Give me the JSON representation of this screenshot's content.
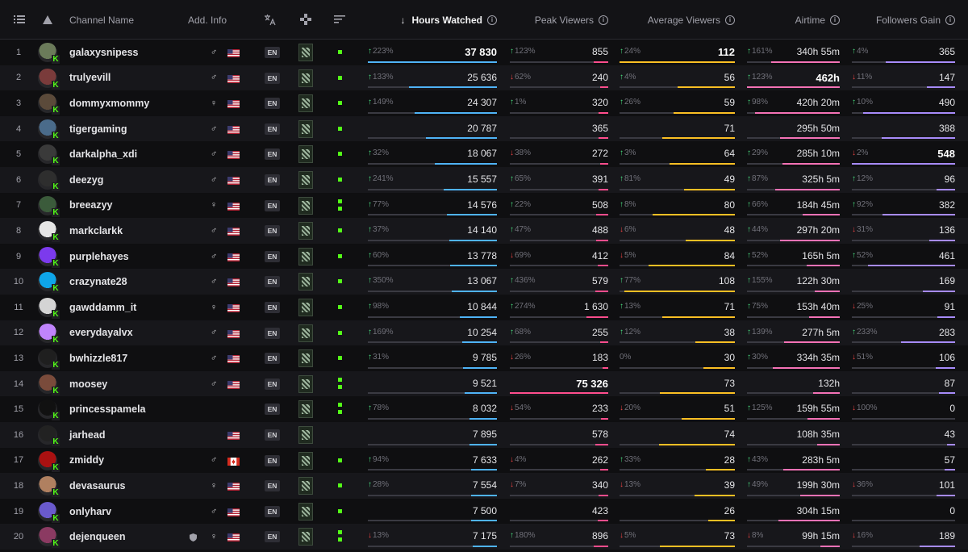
{
  "header": {
    "list_icon": "list-icon",
    "kick_icon": "kick-logo-icon",
    "channel_name": "Channel Name",
    "add_info": "Add. Info",
    "hours_watched": "Hours Watched",
    "peak_viewers": "Peak Viewers",
    "average_viewers": "Average Viewers",
    "airtime": "Airtime",
    "followers_gain": "Followers Gain",
    "sort_arrow": "↓",
    "info_glyph": "i"
  },
  "colors": {
    "hours": "#4fb3f6",
    "peak": "#ff4d8d",
    "avg": "#fbbf24",
    "airtime": "#f472b6",
    "followers": "#a78bfa",
    "live": "#53fc18"
  },
  "rows": [
    {
      "rank": "1",
      "name": "galaxysnipess",
      "gender": "♂",
      "flag": "us",
      "lang": "EN",
      "hw_delta": "223%",
      "hw_dir": "up",
      "hw": "37 830",
      "hw_top": true,
      "hw_frac": 1.0,
      "pv_delta": "123%",
      "pv_dir": "up",
      "pv": "855",
      "pv_frac": 0.15,
      "av_delta": "24%",
      "av_dir": "up",
      "av": "112",
      "av_top": true,
      "av_frac": 1.0,
      "at_delta": "161%",
      "at_dir": "up",
      "at": "340h 55m",
      "at_frac": 0.74,
      "fg_delta": "4%",
      "fg_dir": "up",
      "fg": "365",
      "fg_frac": 0.67,
      "live": "single"
    },
    {
      "rank": "2",
      "name": "trulyevill",
      "gender": "♂",
      "flag": "us",
      "lang": "EN",
      "hw_delta": "133%",
      "hw_dir": "up",
      "hw": "25 636",
      "hw_frac": 0.68,
      "pv_delta": "62%",
      "pv_dir": "down",
      "pv": "240",
      "pv_frac": 0.08,
      "av_delta": "4%",
      "av_dir": "up",
      "av": "56",
      "av_frac": 0.5,
      "at_delta": "123%",
      "at_dir": "up",
      "at": "462h",
      "at_top": true,
      "at_frac": 1.0,
      "fg_delta": "11%",
      "fg_dir": "down",
      "fg": "147",
      "fg_frac": 0.27,
      "live": "single"
    },
    {
      "rank": "3",
      "name": "dommyxmommy",
      "gender": "♀",
      "flag": "us",
      "lang": "EN",
      "hw_delta": "149%",
      "hw_dir": "up",
      "hw": "24 307",
      "hw_frac": 0.64,
      "pv_delta": "1%",
      "pv_dir": "up",
      "pv": "320",
      "pv_frac": 0.1,
      "av_delta": "26%",
      "av_dir": "up",
      "av": "59",
      "av_frac": 0.53,
      "at_delta": "98%",
      "at_dir": "up",
      "at": "420h 20m",
      "at_frac": 0.91,
      "fg_delta": "10%",
      "fg_dir": "up",
      "fg": "490",
      "fg_frac": 0.89,
      "live": "single"
    },
    {
      "rank": "4",
      "name": "tigergaming",
      "gender": "♂",
      "flag": "us",
      "lang": "EN",
      "hw_delta": "",
      "hw_dir": "",
      "hw": "20 787",
      "hw_frac": 0.55,
      "pv_delta": "",
      "pv_dir": "",
      "pv": "365",
      "pv_frac": 0.1,
      "av_delta": "",
      "av_dir": "",
      "av": "71",
      "av_frac": 0.63,
      "at_delta": "",
      "at_dir": "",
      "at": "295h 50m",
      "at_frac": 0.64,
      "fg_delta": "",
      "fg_dir": "",
      "fg": "388",
      "fg_frac": 0.71,
      "live": "single"
    },
    {
      "rank": "5",
      "name": "darkalpha_xdi",
      "gender": "♂",
      "flag": "us",
      "lang": "EN",
      "hw_delta": "32%",
      "hw_dir": "up",
      "hw": "18 067",
      "hw_frac": 0.48,
      "pv_delta": "38%",
      "pv_dir": "down",
      "pv": "272",
      "pv_frac": 0.08,
      "av_delta": "3%",
      "av_dir": "up",
      "av": "64",
      "av_frac": 0.57,
      "at_delta": "29%",
      "at_dir": "up",
      "at": "285h 10m",
      "at_frac": 0.62,
      "fg_delta": "2%",
      "fg_dir": "down",
      "fg": "548",
      "fg_top": true,
      "fg_frac": 1.0,
      "live": "single"
    },
    {
      "rank": "6",
      "name": "deezyg",
      "gender": "♂",
      "flag": "us",
      "lang": "EN",
      "hw_delta": "241%",
      "hw_dir": "up",
      "hw": "15 557",
      "hw_frac": 0.41,
      "pv_delta": "65%",
      "pv_dir": "up",
      "pv": "391",
      "pv_frac": 0.1,
      "av_delta": "81%",
      "av_dir": "up",
      "av": "49",
      "av_frac": 0.44,
      "at_delta": "87%",
      "at_dir": "up",
      "at": "325h 5m",
      "at_frac": 0.7,
      "fg_delta": "12%",
      "fg_dir": "up",
      "fg": "96",
      "fg_frac": 0.18,
      "live": "single"
    },
    {
      "rank": "7",
      "name": "breeazyy",
      "gender": "♀",
      "flag": "us",
      "lang": "EN",
      "hw_delta": "77%",
      "hw_dir": "up",
      "hw": "14 576",
      "hw_frac": 0.39,
      "pv_delta": "22%",
      "pv_dir": "up",
      "pv": "508",
      "pv_frac": 0.12,
      "av_delta": "8%",
      "av_dir": "up",
      "av": "80",
      "av_frac": 0.71,
      "at_delta": "66%",
      "at_dir": "up",
      "at": "184h 45m",
      "at_frac": 0.4,
      "fg_delta": "92%",
      "fg_dir": "up",
      "fg": "382",
      "fg_frac": 0.7,
      "live": "double"
    },
    {
      "rank": "8",
      "name": "markclarkk",
      "gender": "♂",
      "flag": "us",
      "lang": "EN",
      "hw_delta": "37%",
      "hw_dir": "up",
      "hw": "14 140",
      "hw_frac": 0.37,
      "pv_delta": "47%",
      "pv_dir": "up",
      "pv": "488",
      "pv_frac": 0.12,
      "av_delta": "6%",
      "av_dir": "down",
      "av": "48",
      "av_frac": 0.43,
      "at_delta": "44%",
      "at_dir": "up",
      "at": "297h 20m",
      "at_frac": 0.64,
      "fg_delta": "31%",
      "fg_dir": "down",
      "fg": "136",
      "fg_frac": 0.25,
      "live": "single"
    },
    {
      "rank": "9",
      "name": "purplehayes",
      "gender": "♂",
      "flag": "us",
      "lang": "EN",
      "hw_delta": "60%",
      "hw_dir": "up",
      "hw": "13 778",
      "hw_frac": 0.36,
      "pv_delta": "69%",
      "pv_dir": "down",
      "pv": "412",
      "pv_frac": 0.11,
      "av_delta": "5%",
      "av_dir": "down",
      "av": "84",
      "av_frac": 0.75,
      "at_delta": "52%",
      "at_dir": "up",
      "at": "165h 5m",
      "at_frac": 0.36,
      "fg_delta": "52%",
      "fg_dir": "up",
      "fg": "461",
      "fg_frac": 0.84,
      "live": "single"
    },
    {
      "rank": "10",
      "name": "crazynate28",
      "gender": "♂",
      "flag": "us",
      "lang": "EN",
      "hw_delta": "350%",
      "hw_dir": "up",
      "hw": "13 067",
      "hw_frac": 0.35,
      "pv_delta": "436%",
      "pv_dir": "up",
      "pv": "579",
      "pv_frac": 0.13,
      "av_delta": "77%",
      "av_dir": "up",
      "av": "108",
      "av_frac": 0.96,
      "at_delta": "155%",
      "at_dir": "up",
      "at": "122h 30m",
      "at_frac": 0.27,
      "fg_delta": "",
      "fg_dir": "",
      "fg": "169",
      "fg_frac": 0.31,
      "live": "single"
    },
    {
      "rank": "11",
      "name": "gawddamm_it",
      "gender": "♀",
      "flag": "us",
      "lang": "EN",
      "hw_delta": "98%",
      "hw_dir": "up",
      "hw": "10 844",
      "hw_frac": 0.29,
      "pv_delta": "274%",
      "pv_dir": "up",
      "pv": "1 630",
      "pv_frac": 0.22,
      "av_delta": "13%",
      "av_dir": "up",
      "av": "71",
      "av_frac": 0.63,
      "at_delta": "75%",
      "at_dir": "up",
      "at": "153h 40m",
      "at_frac": 0.33,
      "fg_delta": "25%",
      "fg_dir": "down",
      "fg": "91",
      "fg_frac": 0.17,
      "live": "single"
    },
    {
      "rank": "12",
      "name": "everydayalvx",
      "gender": "♂",
      "flag": "us",
      "lang": "EN",
      "hw_delta": "169%",
      "hw_dir": "up",
      "hw": "10 254",
      "hw_frac": 0.27,
      "pv_delta": "68%",
      "pv_dir": "up",
      "pv": "255",
      "pv_frac": 0.08,
      "av_delta": "12%",
      "av_dir": "up",
      "av": "38",
      "av_frac": 0.34,
      "at_delta": "139%",
      "at_dir": "up",
      "at": "277h 5m",
      "at_frac": 0.6,
      "fg_delta": "233%",
      "fg_dir": "up",
      "fg": "283",
      "fg_frac": 0.52,
      "live": "single"
    },
    {
      "rank": "13",
      "name": "bwhizzle817",
      "gender": "♂",
      "flag": "us",
      "lang": "EN",
      "hw_delta": "31%",
      "hw_dir": "up",
      "hw": "9 785",
      "hw_frac": 0.26,
      "pv_delta": "26%",
      "pv_dir": "down",
      "pv": "183",
      "pv_frac": 0.06,
      "av_delta": "0%",
      "av_dir": "",
      "av": "30",
      "av_frac": 0.27,
      "at_delta": "30%",
      "at_dir": "up",
      "at": "334h 35m",
      "at_frac": 0.72,
      "fg_delta": "51%",
      "fg_dir": "down",
      "fg": "106",
      "fg_frac": 0.19,
      "live": "single"
    },
    {
      "rank": "14",
      "name": "moosey",
      "gender": "♂",
      "flag": "us",
      "lang": "EN",
      "hw_delta": "",
      "hw_dir": "",
      "hw": "9 521",
      "hw_frac": 0.25,
      "pv_delta": "",
      "pv_dir": "",
      "pv": "75 326",
      "pv_top": true,
      "pv_frac": 1.0,
      "av_delta": "",
      "av_dir": "",
      "av": "73",
      "av_frac": 0.65,
      "at_delta": "",
      "at_dir": "",
      "at": "132h",
      "at_frac": 0.29,
      "fg_delta": "",
      "fg_dir": "",
      "fg": "87",
      "fg_frac": 0.16,
      "live": "double"
    },
    {
      "rank": "15",
      "name": "princesspamela",
      "gender": "",
      "flag": "",
      "lang": "EN",
      "hw_delta": "78%",
      "hw_dir": "up",
      "hw": "8 032",
      "hw_frac": 0.21,
      "pv_delta": "54%",
      "pv_dir": "down",
      "pv": "233",
      "pv_frac": 0.07,
      "av_delta": "20%",
      "av_dir": "down",
      "av": "51",
      "av_frac": 0.46,
      "at_delta": "125%",
      "at_dir": "up",
      "at": "159h 55m",
      "at_frac": 0.35,
      "fg_delta": "100%",
      "fg_dir": "down",
      "fg": "0",
      "fg_frac": 0.0,
      "live": "double"
    },
    {
      "rank": "16",
      "name": "jarhead",
      "gender": "",
      "flag": "us",
      "lang": "EN",
      "hw_delta": "",
      "hw_dir": "",
      "hw": "7 895",
      "hw_frac": 0.21,
      "pv_delta": "",
      "pv_dir": "",
      "pv": "578",
      "pv_frac": 0.13,
      "av_delta": "",
      "av_dir": "",
      "av": "74",
      "av_frac": 0.66,
      "at_delta": "",
      "at_dir": "",
      "at": "108h 35m",
      "at_frac": 0.24,
      "fg_delta": "",
      "fg_dir": "",
      "fg": "43",
      "fg_frac": 0.08,
      "live": "none"
    },
    {
      "rank": "17",
      "name": "zmiddy",
      "gender": "♂",
      "flag": "ca",
      "lang": "EN",
      "hw_delta": "94%",
      "hw_dir": "up",
      "hw": "7 633",
      "hw_frac": 0.2,
      "pv_delta": "4%",
      "pv_dir": "down",
      "pv": "262",
      "pv_frac": 0.08,
      "av_delta": "33%",
      "av_dir": "up",
      "av": "28",
      "av_frac": 0.25,
      "at_delta": "43%",
      "at_dir": "up",
      "at": "283h 5m",
      "at_frac": 0.61,
      "fg_delta": "",
      "fg_dir": "",
      "fg": "57",
      "fg_frac": 0.1,
      "live": "single"
    },
    {
      "rank": "18",
      "name": "devasaurus",
      "gender": "♀",
      "flag": "us",
      "lang": "EN",
      "hw_delta": "28%",
      "hw_dir": "up",
      "hw": "7 554",
      "hw_frac": 0.2,
      "pv_delta": "7%",
      "pv_dir": "down",
      "pv": "340",
      "pv_frac": 0.1,
      "av_delta": "13%",
      "av_dir": "down",
      "av": "39",
      "av_frac": 0.35,
      "at_delta": "49%",
      "at_dir": "up",
      "at": "199h 30m",
      "at_frac": 0.43,
      "fg_delta": "36%",
      "fg_dir": "down",
      "fg": "101",
      "fg_frac": 0.18,
      "live": "single"
    },
    {
      "rank": "19",
      "name": "onlyharv",
      "gender": "♂",
      "flag": "us",
      "lang": "EN",
      "hw_delta": "",
      "hw_dir": "",
      "hw": "7 500",
      "hw_frac": 0.2,
      "pv_delta": "",
      "pv_dir": "",
      "pv": "423",
      "pv_frac": 0.11,
      "av_delta": "",
      "av_dir": "",
      "av": "26",
      "av_frac": 0.23,
      "at_delta": "",
      "at_dir": "",
      "at": "304h 15m",
      "at_frac": 0.66,
      "fg_delta": "",
      "fg_dir": "",
      "fg": "0",
      "fg_frac": 0.0,
      "live": "single"
    },
    {
      "rank": "20",
      "name": "dejenqueen",
      "gender": "♀",
      "flag": "us",
      "lang": "EN",
      "verified": true,
      "hw_delta": "13%",
      "hw_dir": "down",
      "hw": "7 175",
      "hw_frac": 0.19,
      "pv_delta": "180%",
      "pv_dir": "up",
      "pv": "896",
      "pv_frac": 0.15,
      "av_delta": "5%",
      "av_dir": "down",
      "av": "73",
      "av_frac": 0.65,
      "at_delta": "8%",
      "at_dir": "down",
      "at": "99h 15m",
      "at_frac": 0.21,
      "fg_delta": "16%",
      "fg_dir": "down",
      "fg": "189",
      "fg_frac": 0.34,
      "live": "double"
    }
  ]
}
